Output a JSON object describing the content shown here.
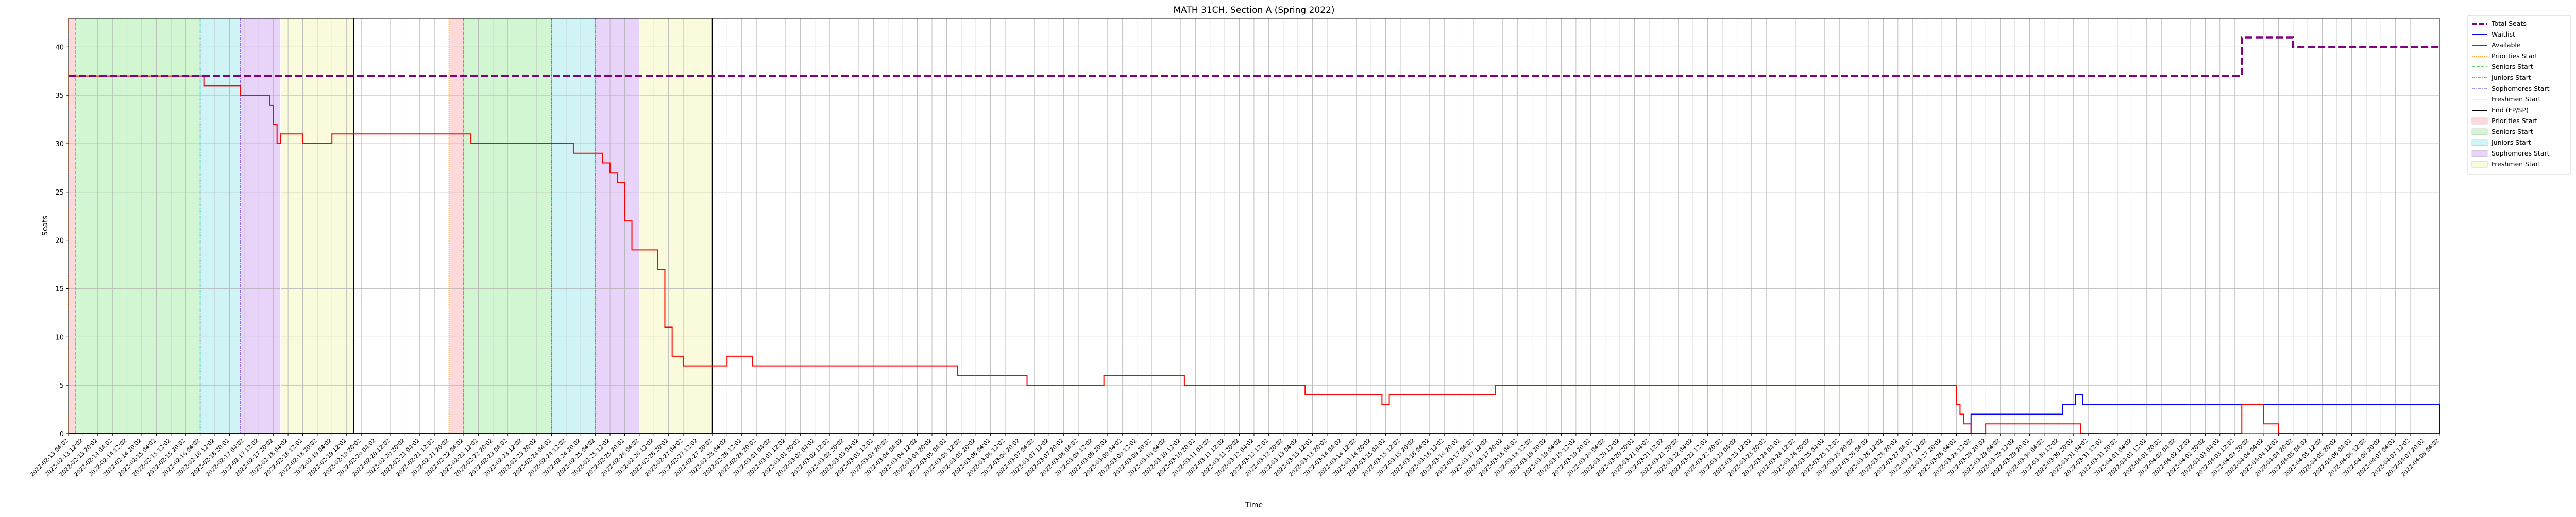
{
  "chart_data": {
    "type": "line",
    "title": "MATH 31CH, Section A (Spring 2022)",
    "xlabel": "Time",
    "ylabel": "Seats",
    "ylim": [
      0,
      43
    ],
    "yticks": [
      0,
      5,
      10,
      15,
      20,
      25,
      30,
      35,
      40
    ],
    "grid": true,
    "legend_position": "outside-right",
    "x_start": "2022-02-13T04:02",
    "x_end": "2022-04-08T04:04",
    "tick_step_hours": 8,
    "series": [
      {
        "name": "Total Seats",
        "color": "#800080",
        "style": "dashed",
        "step": true,
        "points": [
          [
            "2022-02-13T04:02",
            37
          ],
          [
            "2022-04-03T16:00",
            41
          ],
          [
            "2022-04-04T20:00",
            40
          ],
          [
            "2022-04-08T04:04",
            40
          ]
        ]
      },
      {
        "name": "Waitlist",
        "color": "#0000ff",
        "style": "solid",
        "step": true,
        "points": [
          [
            "2022-02-13T04:02",
            0
          ],
          [
            "2022-03-28T12:00",
            2
          ],
          [
            "2022-03-30T14:00",
            3
          ],
          [
            "2022-03-30T21:00",
            4
          ],
          [
            "2022-03-31T01:00",
            3
          ],
          [
            "2022-04-08T04:04",
            0
          ]
        ]
      },
      {
        "name": "Available",
        "color": "#ff0000",
        "style": "solid",
        "step": true,
        "points": [
          [
            "2022-02-13T04:02",
            37
          ],
          [
            "2022-02-16T06:00",
            36
          ],
          [
            "2022-02-17T02:00",
            35
          ],
          [
            "2022-02-17T18:00",
            34
          ],
          [
            "2022-02-17T20:00",
            32
          ],
          [
            "2022-02-17T22:00",
            30
          ],
          [
            "2022-02-18T00:00",
            31
          ],
          [
            "2022-02-18T12:00",
            30
          ],
          [
            "2022-02-19T04:00",
            31
          ],
          [
            "2022-02-22T08:00",
            30
          ],
          [
            "2022-02-24T16:00",
            29
          ],
          [
            "2022-02-25T08:00",
            28
          ],
          [
            "2022-02-25T12:00",
            27
          ],
          [
            "2022-02-25T16:00",
            26
          ],
          [
            "2022-02-25T20:00",
            22
          ],
          [
            "2022-02-26T00:00",
            19
          ],
          [
            "2022-02-26T14:00",
            17
          ],
          [
            "2022-02-26T18:00",
            11
          ],
          [
            "2022-02-26T22:00",
            8
          ],
          [
            "2022-02-27T04:00",
            7
          ],
          [
            "2022-02-28T04:00",
            8
          ],
          [
            "2022-02-28T18:00",
            7
          ],
          [
            "2022-03-05T10:00",
            6
          ],
          [
            "2022-03-07T00:00",
            5
          ],
          [
            "2022-03-08T18:00",
            6
          ],
          [
            "2022-03-10T14:00",
            5
          ],
          [
            "2022-03-13T08:00",
            4
          ],
          [
            "2022-03-15T02:00",
            3
          ],
          [
            "2022-03-15T06:00",
            4
          ],
          [
            "2022-03-17T16:00",
            5
          ],
          [
            "2022-03-28T04:00",
            3
          ],
          [
            "2022-03-28T06:00",
            2
          ],
          [
            "2022-03-28T08:00",
            1
          ],
          [
            "2022-03-28T12:00",
            0
          ],
          [
            "2022-03-28T20:00",
            1
          ],
          [
            "2022-03-31T00:00",
            0
          ],
          [
            "2022-04-03T16:00",
            3
          ],
          [
            "2022-04-04T04:00",
            1
          ],
          [
            "2022-04-04T12:00",
            0
          ],
          [
            "2022-04-08T04:04",
            0
          ]
        ]
      }
    ],
    "periods": [
      {
        "name": "Priorities Start",
        "color": "#ffbfbf",
        "start": "2022-02-13T04:02",
        "end": "2022-02-13T08:00",
        "line_color": "#ff8c00",
        "line_style": "dotted"
      },
      {
        "name": "Seniors Start",
        "color": "#b4eeb4",
        "start": "2022-02-13T08:00",
        "end": "2022-02-16T04:00",
        "line_color": "#32cd32",
        "line_style": "dashed"
      },
      {
        "name": "Juniors Start",
        "color": "#b0ecf0",
        "start": "2022-02-16T04:00",
        "end": "2022-02-17T02:00",
        "line_color": "#20b2aa",
        "line_style": "dashdot"
      },
      {
        "name": "Sophomores Start",
        "color": "#d8b8f4",
        "start": "2022-02-17T02:00",
        "end": "2022-02-18T00:00",
        "line_color": "#9370db",
        "line_style": "dashdot"
      },
      {
        "name": "Freshmen Start",
        "color": "#f6f6c4",
        "start": "2022-02-18T00:00",
        "end": "2022-02-19T16:00",
        "line_color": "#ffffff",
        "line_style": "solid"
      },
      {
        "name": "Priorities Start",
        "color": "#ffbfbf",
        "start": "2022-02-21T20:00",
        "end": "2022-02-22T04:00",
        "line_color": "#ff8c00",
        "line_style": "dotted"
      },
      {
        "name": "Seniors Start",
        "color": "#b4eeb4",
        "start": "2022-02-22T04:00",
        "end": "2022-02-24T04:00",
        "line_color": "#32cd32",
        "line_style": "dashed"
      },
      {
        "name": "Juniors Start",
        "color": "#b0ecf0",
        "start": "2022-02-24T04:00",
        "end": "2022-02-25T04:00",
        "line_color": "#20b2aa",
        "line_style": "dashdot"
      },
      {
        "name": "Sophomores Start",
        "color": "#d8b8f4",
        "start": "2022-02-25T04:00",
        "end": "2022-02-26T04:00",
        "line_color": "#9370db",
        "line_style": "dashdot"
      },
      {
        "name": "Freshmen Start",
        "color": "#f6f6c4",
        "start": "2022-02-26T04:00",
        "end": "2022-02-27T20:00",
        "line_color": "#ffffff",
        "line_style": "solid"
      }
    ],
    "end_markers": {
      "name": "End (FP/SP)",
      "color": "#000000",
      "times": [
        "2022-02-19T16:00",
        "2022-02-27T20:00"
      ]
    },
    "legend": [
      {
        "label": "Total Seats",
        "kind": "line",
        "color": "#800080",
        "dash": "10,4",
        "width": 4
      },
      {
        "label": "Waitlist",
        "kind": "line",
        "color": "#0000ff",
        "dash": "",
        "width": 2
      },
      {
        "label": "Available",
        "kind": "line",
        "color": "#ff0000",
        "dash": "",
        "width": 2
      },
      {
        "label": "Priorities Start",
        "kind": "line",
        "color": "#ff8c00",
        "dash": "2,2",
        "width": 1.5
      },
      {
        "label": "Seniors Start",
        "kind": "line",
        "color": "#32cd32",
        "dash": "6,3",
        "width": 1.5
      },
      {
        "label": "Juniors Start",
        "kind": "line",
        "color": "#20b2aa",
        "dash": "6,2,2,2",
        "width": 1.5
      },
      {
        "label": "Sophomores Start",
        "kind": "line",
        "color": "#9370db",
        "dash": "6,2,2,2",
        "width": 1.5
      },
      {
        "label": "Freshmen Start",
        "kind": "line",
        "color": "#ffffff",
        "dash": "",
        "width": 1.5
      },
      {
        "label": "End (FP/SP)",
        "kind": "line",
        "color": "#000000",
        "dash": "",
        "width": 2
      },
      {
        "label": "Priorities Start",
        "kind": "patch",
        "color": "#ffbfbf"
      },
      {
        "label": "Seniors Start",
        "kind": "patch",
        "color": "#b4eeb4"
      },
      {
        "label": "Juniors Start",
        "kind": "patch",
        "color": "#b0ecf0"
      },
      {
        "label": "Sophomores Start",
        "kind": "patch",
        "color": "#d8b8f4"
      },
      {
        "label": "Freshmen Start",
        "kind": "patch",
        "color": "#f6f6c4"
      }
    ]
  }
}
